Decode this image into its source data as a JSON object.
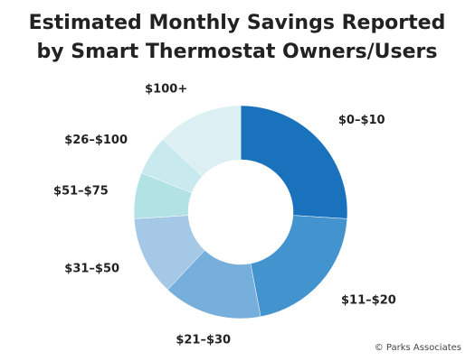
{
  "chart_data": {
    "type": "donut",
    "title": [
      "Estimated Monthly Savings Reported",
      "by Smart Thermostat Owners/Users"
    ],
    "categories": [
      "$0–$10",
      "$11–$20",
      "$21–$30",
      "$31–$50",
      "$51–$75",
      "$26–$100",
      "$100+"
    ],
    "values": [
      26,
      21,
      15,
      12,
      7,
      6,
      13
    ],
    "colors": [
      "#1a72bd",
      "#4393cf",
      "#76afdc",
      "#a5c8e6",
      "#b3e2e5",
      "#c8e9ee",
      "#dcf0f3"
    ],
    "source": "© Parks Associates"
  }
}
